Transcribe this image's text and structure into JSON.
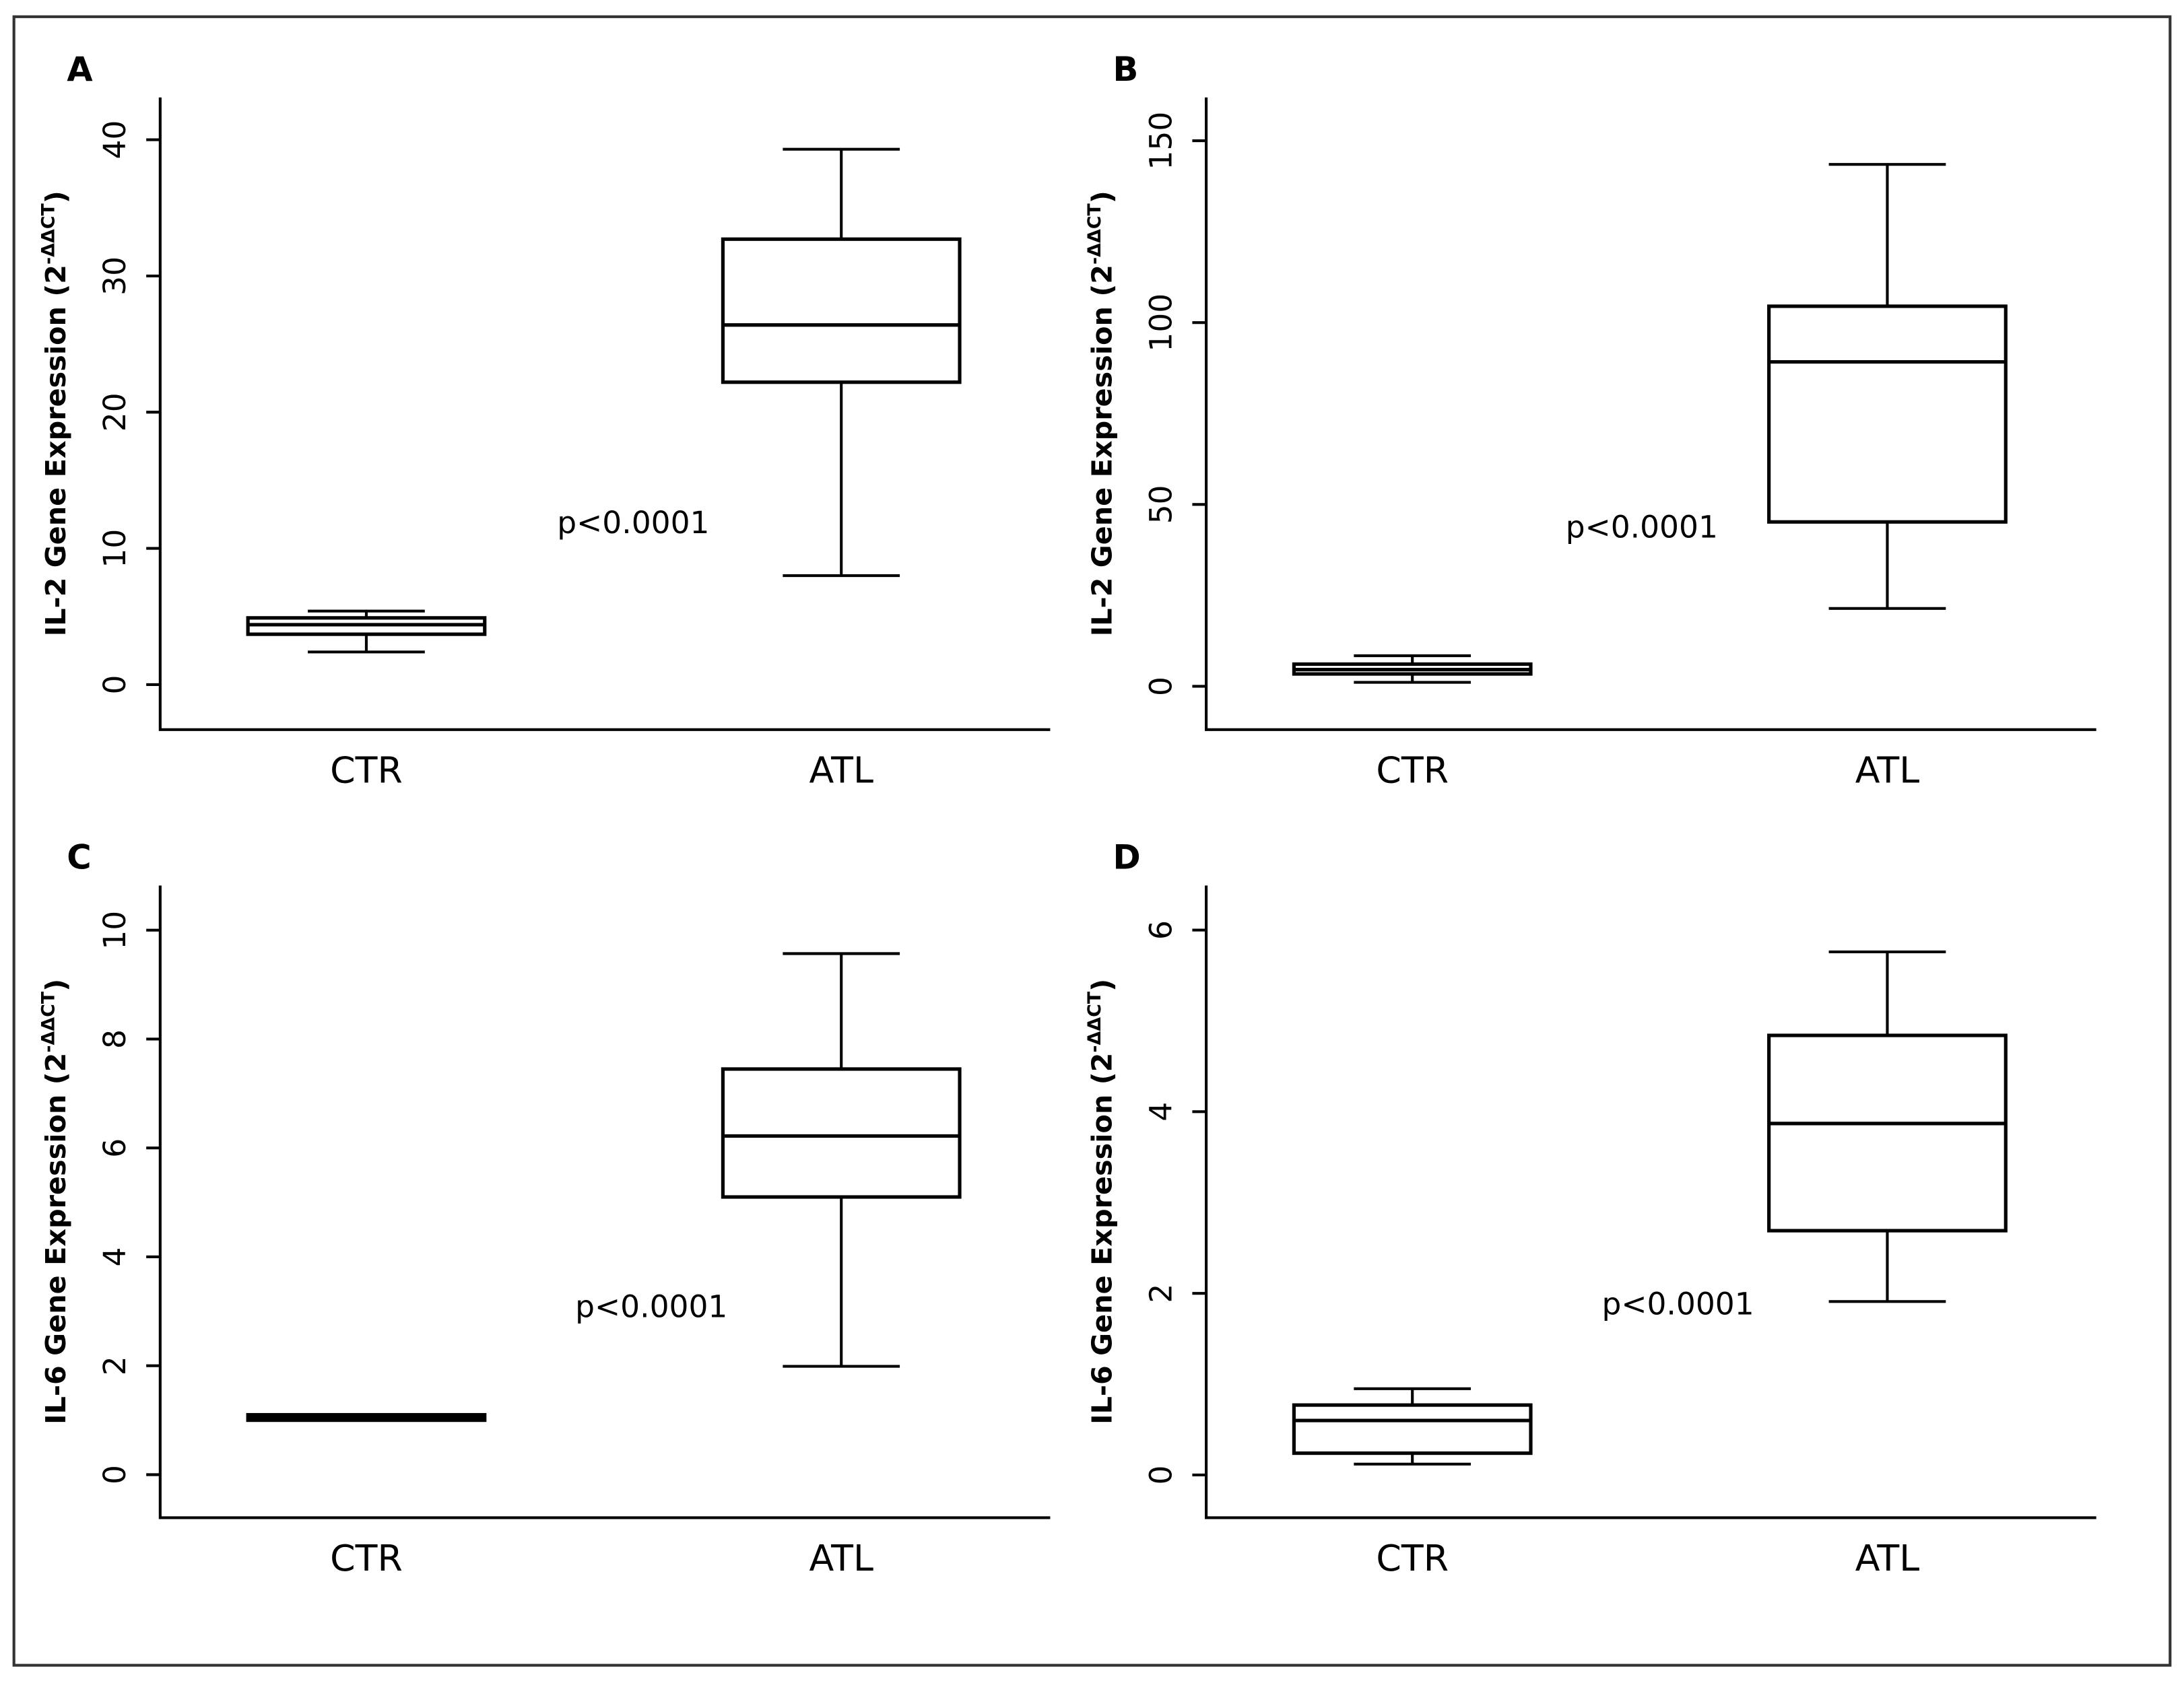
{
  "chart_data": [
    {
      "type": "box",
      "panel": "A",
      "ylabel": {
        "text": "IL-2 Gene Expression (2",
        "superscript": "-ΔΔCT",
        "suffix": ")"
      },
      "annotation": "p<0.0001",
      "categories": [
        "CTR",
        "ATL"
      ],
      "min": [
        2.4,
        8.0
      ],
      "q1": [
        3.7,
        22.2
      ],
      "median": [
        4.4,
        26.4
      ],
      "q3": [
        4.9,
        32.7
      ],
      "max": [
        5.4,
        39.3
      ],
      "ylim": [
        -3.3,
        43.1
      ],
      "yticks": [
        0,
        10,
        20,
        30,
        40
      ]
    },
    {
      "type": "box",
      "panel": "B",
      "ylabel": {
        "text": "IL-2 Gene Expression (2",
        "superscript": "-ΔΔCT",
        "suffix": ")"
      },
      "annotation": "p<0.0001",
      "categories": [
        "CTR",
        "ATL"
      ],
      "min": [
        1.1,
        21.4
      ],
      "q1": [
        3.4,
        45.2
      ],
      "median": [
        4.6,
        89.2
      ],
      "q3": [
        6.1,
        104.5
      ],
      "max": [
        8.4,
        143.5
      ],
      "ylim": [
        -11.9,
        161.9
      ],
      "yticks": [
        0,
        50,
        100,
        150
      ]
    },
    {
      "type": "box",
      "panel": "C",
      "ylabel": {
        "text": "IL-6 Gene Expression (2",
        "superscript": "-ΔΔCT",
        "suffix": ")"
      },
      "annotation": "p<0.0001",
      "categories": [
        "CTR",
        "ATL"
      ],
      "min": [
        1.03,
        1.99
      ],
      "q1": [
        1.0,
        5.1
      ],
      "median": [
        1.05,
        6.22
      ],
      "q3": [
        1.1,
        7.45
      ],
      "max": [
        1.06,
        9.57
      ],
      "ylim": [
        -0.79,
        10.82
      ],
      "yticks": [
        0,
        2,
        4,
        6,
        8,
        10
      ]
    },
    {
      "type": "box",
      "panel": "D",
      "ylabel": {
        "text": "IL-6 Gene Expression (2",
        "superscript": "-ΔΔCT",
        "suffix": ")"
      },
      "annotation": "p<0.0001",
      "categories": [
        "CTR",
        "ATL"
      ],
      "min": [
        0.12,
        1.91
      ],
      "q1": [
        0.24,
        2.69
      ],
      "median": [
        0.6,
        3.87
      ],
      "q3": [
        0.77,
        4.84
      ],
      "max": [
        0.95,
        5.76
      ],
      "ylim": [
        -0.47,
        6.49
      ],
      "yticks": [
        0,
        2,
        4,
        6
      ]
    }
  ]
}
